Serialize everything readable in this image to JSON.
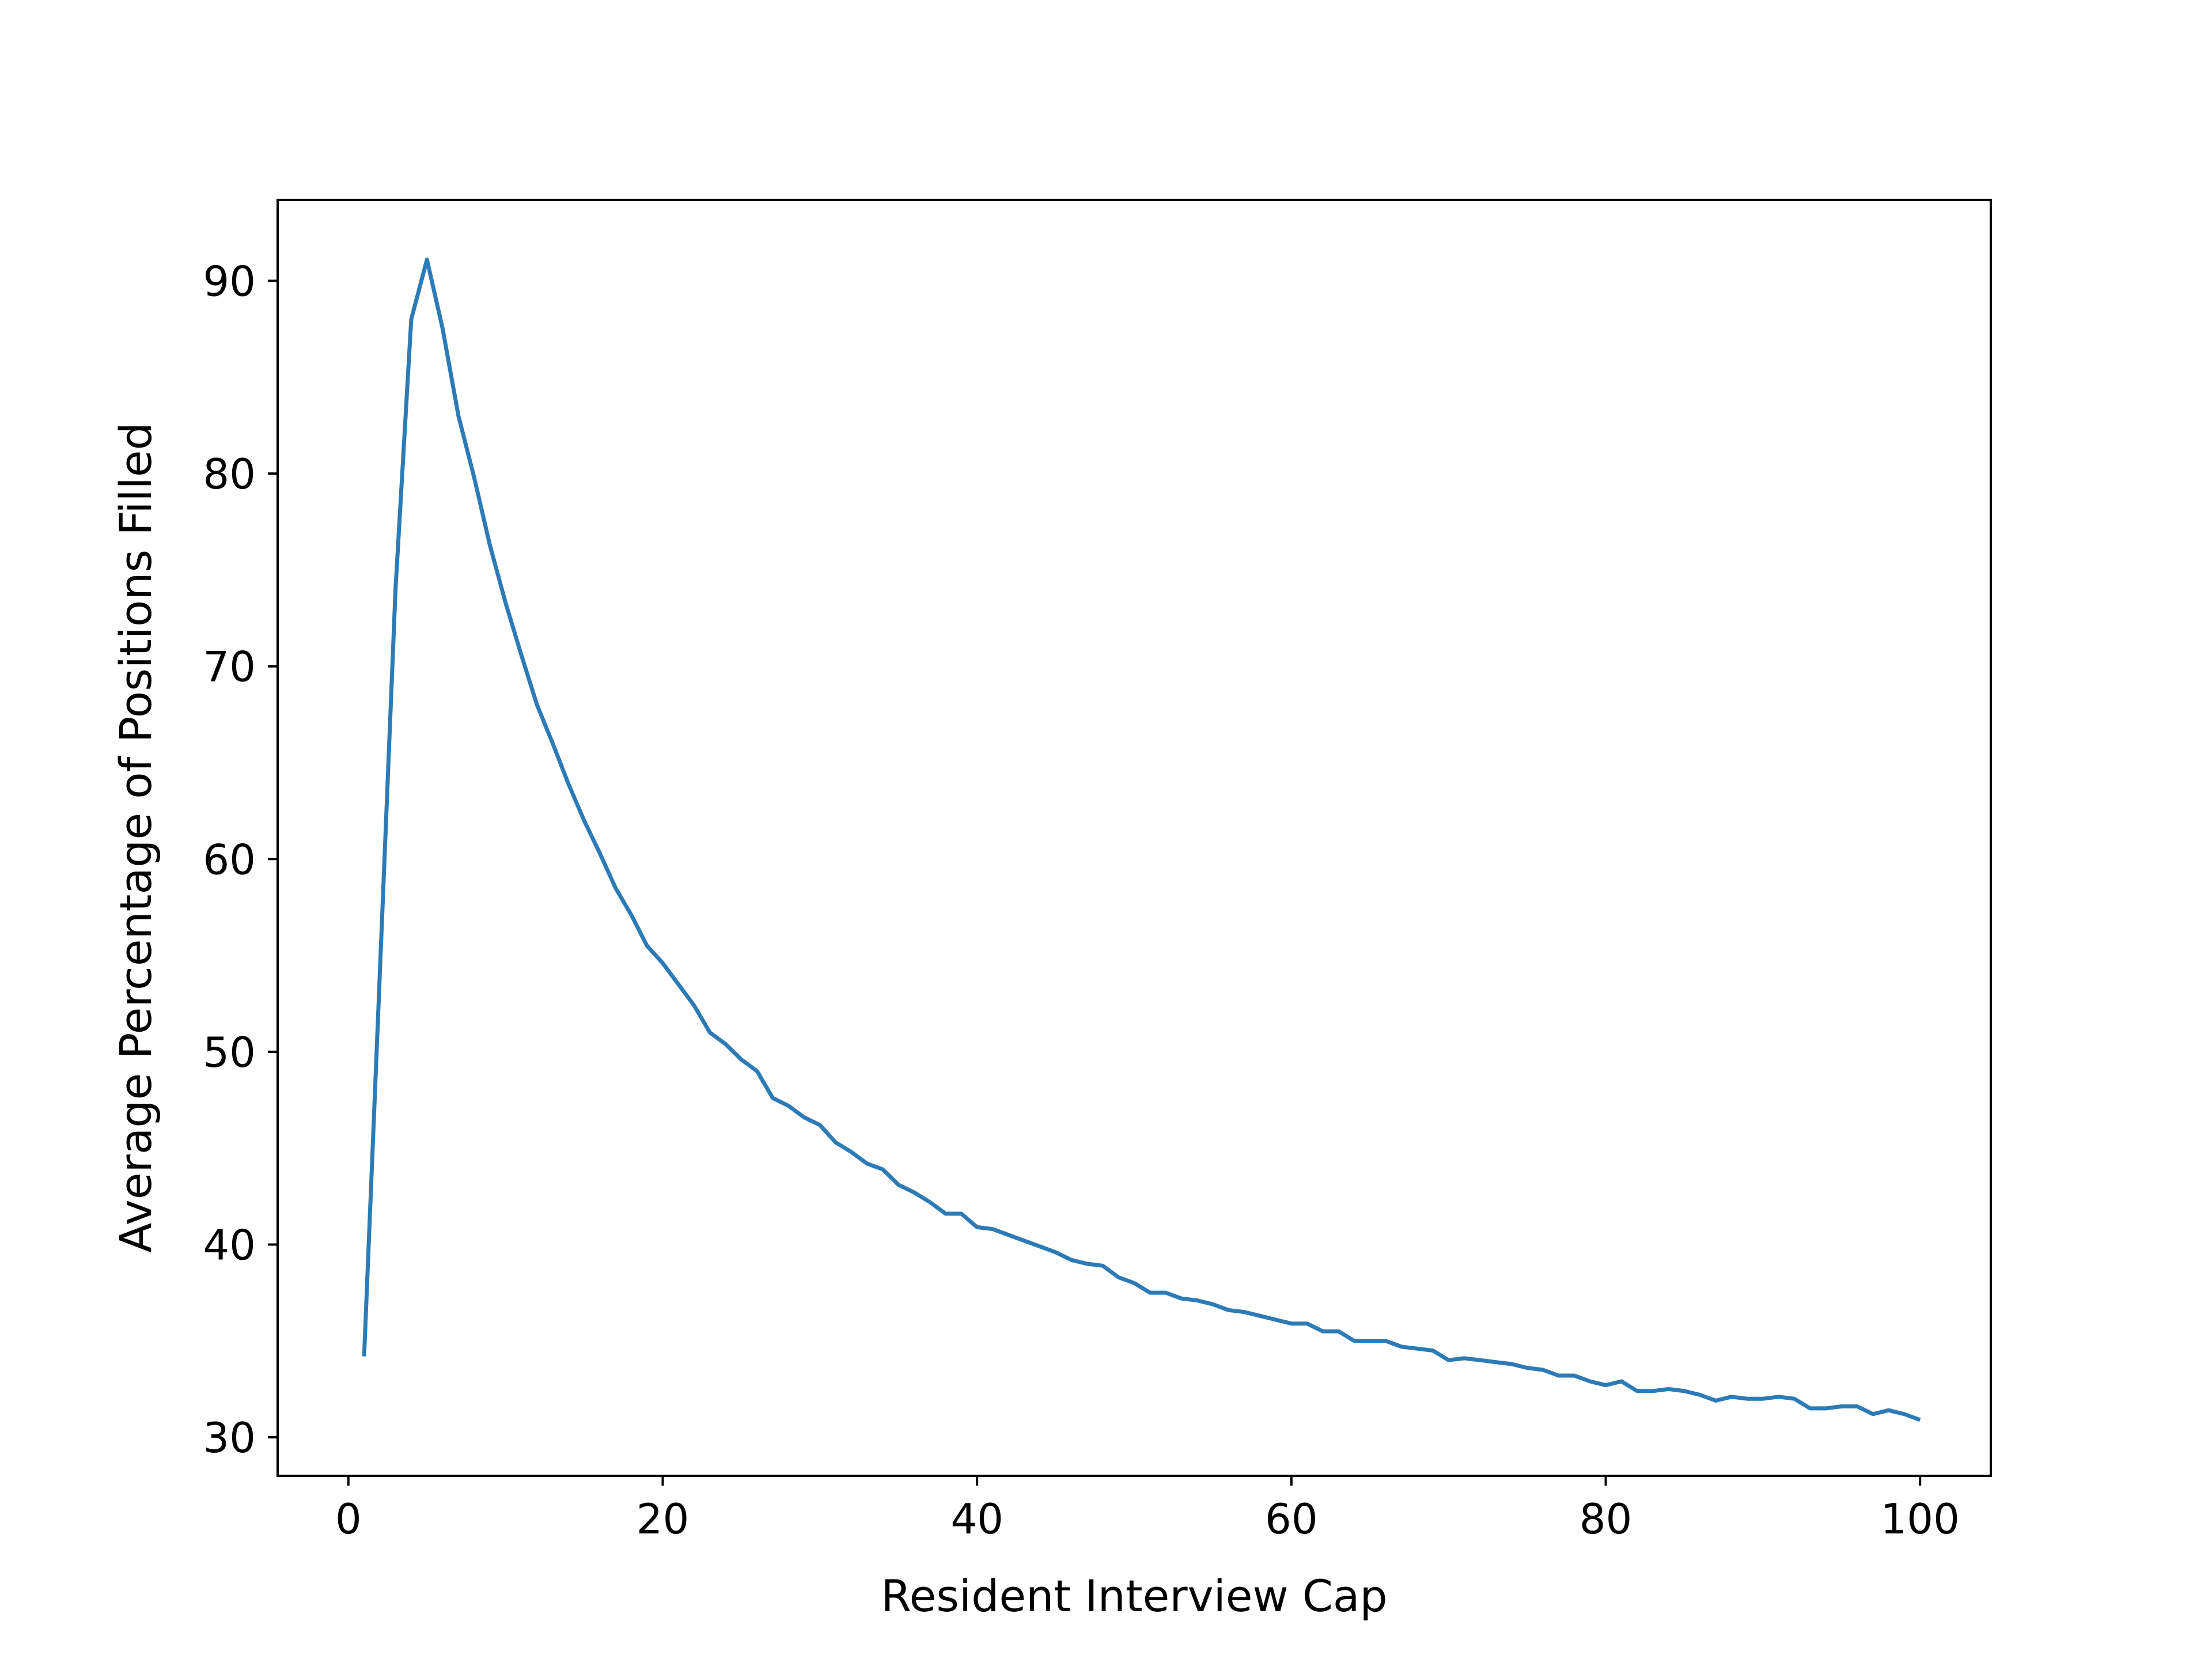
{
  "chart_data": {
    "type": "line",
    "xlabel": "Resident Interview Cap",
    "ylabel": "Average Percentage of Positions Filled",
    "xlim": [
      -4.5,
      104.5
    ],
    "ylim": [
      28.0,
      94.2
    ],
    "xticks": [
      0,
      20,
      40,
      60,
      80,
      100
    ],
    "yticks": [
      30,
      40,
      50,
      60,
      70,
      80,
      90
    ],
    "grid": false,
    "series_color": "#2c7bb6",
    "series": [
      {
        "x": [
          1,
          2,
          3,
          4,
          5,
          6,
          7,
          8,
          9,
          10,
          11,
          12,
          13,
          14,
          15,
          16,
          17,
          18,
          19,
          20,
          21,
          22,
          23,
          24,
          25,
          26,
          27,
          28,
          29,
          30,
          31,
          32,
          33,
          34,
          35,
          36,
          37,
          38,
          39,
          40,
          41,
          42,
          43,
          44,
          45,
          46,
          47,
          48,
          49,
          50,
          51,
          52,
          53,
          54,
          55,
          56,
          57,
          58,
          59,
          60,
          61,
          62,
          63,
          64,
          65,
          66,
          67,
          68,
          69,
          70,
          71,
          72,
          73,
          74,
          75,
          76,
          77,
          78,
          79,
          80,
          81,
          82,
          83,
          84,
          85,
          86,
          87,
          88,
          89,
          90,
          91,
          92,
          93,
          94,
          95,
          96,
          97,
          98,
          99,
          100
        ],
        "y": [
          34.2,
          54.0,
          74.0,
          88.0,
          91.1,
          87.5,
          83.0,
          79.8,
          76.3,
          73.3,
          70.6,
          68.0,
          66.0,
          63.9,
          62.0,
          60.3,
          58.5,
          57.1,
          55.5,
          54.6,
          53.5,
          52.4,
          51.0,
          50.4,
          49.6,
          49.0,
          47.6,
          47.2,
          46.6,
          46.2,
          45.3,
          44.8,
          44.2,
          43.9,
          43.1,
          42.7,
          42.2,
          41.6,
          41.6,
          40.9,
          40.8,
          40.5,
          40.2,
          39.9,
          39.6,
          39.2,
          39.0,
          38.9,
          38.3,
          38.0,
          37.5,
          37.5,
          37.2,
          37.1,
          36.9,
          36.6,
          36.5,
          36.3,
          36.1,
          35.9,
          35.9,
          35.5,
          35.5,
          35.0,
          35.0,
          35.0,
          34.7,
          34.6,
          34.5,
          34.0,
          34.1,
          34.0,
          33.9,
          33.8,
          33.6,
          33.5,
          33.2,
          33.2,
          32.9,
          32.7,
          32.9,
          32.4,
          32.4,
          32.5,
          32.4,
          32.2,
          31.9,
          32.1,
          32.0,
          32.0,
          32.1,
          32.0,
          31.5,
          31.5,
          31.6,
          31.6,
          31.2,
          31.4,
          31.2,
          30.9
        ]
      }
    ]
  }
}
